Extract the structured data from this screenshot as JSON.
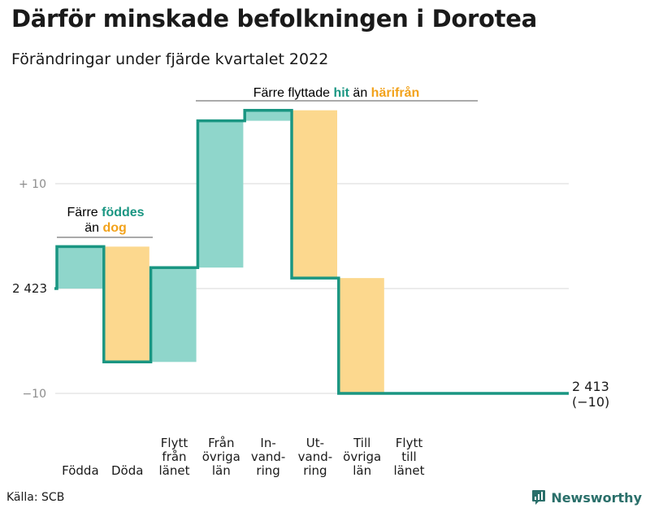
{
  "title": "Därför minskade befolkningen i Dorotea",
  "subtitle": "Förändringar under fjärde kvartalet 2022",
  "source": "Källa: SCB",
  "brand": "Newsworthy",
  "colors": {
    "increase": "#8fd6cb",
    "decrease": "#fcd88e",
    "line": "#1a9682",
    "accent_green": "#1a9682",
    "accent_orange": "#f2a21b",
    "grid": "#d9d9d9",
    "axis_text": "#8c8c8c",
    "text": "#1a1a1a"
  },
  "annotations": {
    "births": {
      "prefix": "Färre ",
      "highlight1": "föddes",
      "middle": "än ",
      "highlight2": "dog"
    },
    "migration": {
      "prefix": "Färre flyttade ",
      "highlight1": "hit",
      "middle": " än ",
      "highlight2": "härifrån"
    }
  },
  "chart_data": {
    "type": "waterfall",
    "title": "Därför minskade befolkningen i Dorotea",
    "subtitle": "Förändringar under fjärde kvartalet 2022",
    "start": {
      "label": "2 423",
      "value": 2423
    },
    "end": {
      "label": "2 413",
      "change_label": "(−10)",
      "value": 2413
    },
    "ylim": [
      -10.5,
      17
    ],
    "y_ticks": [
      {
        "value": 10,
        "label": "+ 10"
      },
      {
        "value": -10,
        "label": "−10"
      }
    ],
    "categories": [
      {
        "label": [
          "Födda"
        ],
        "value": 4
      },
      {
        "label": [
          "Döda"
        ],
        "value": -11
      },
      {
        "label": [
          "Flytt",
          "från",
          "länet"
        ],
        "value": 9
      },
      {
        "label": [
          "Från",
          "övriga",
          "län"
        ],
        "value": 14
      },
      {
        "label": [
          "In-",
          "vand-",
          "ring"
        ],
        "value": 1
      },
      {
        "label": [
          "Ut-",
          "vand-",
          "ring"
        ],
        "value": -16
      },
      {
        "label": [
          "Till",
          "övriga",
          "län"
        ],
        "value": -11
      },
      {
        "label": [
          "Flytt",
          "till",
          "länet"
        ],
        "value": 0
      }
    ],
    "grid": true
  }
}
